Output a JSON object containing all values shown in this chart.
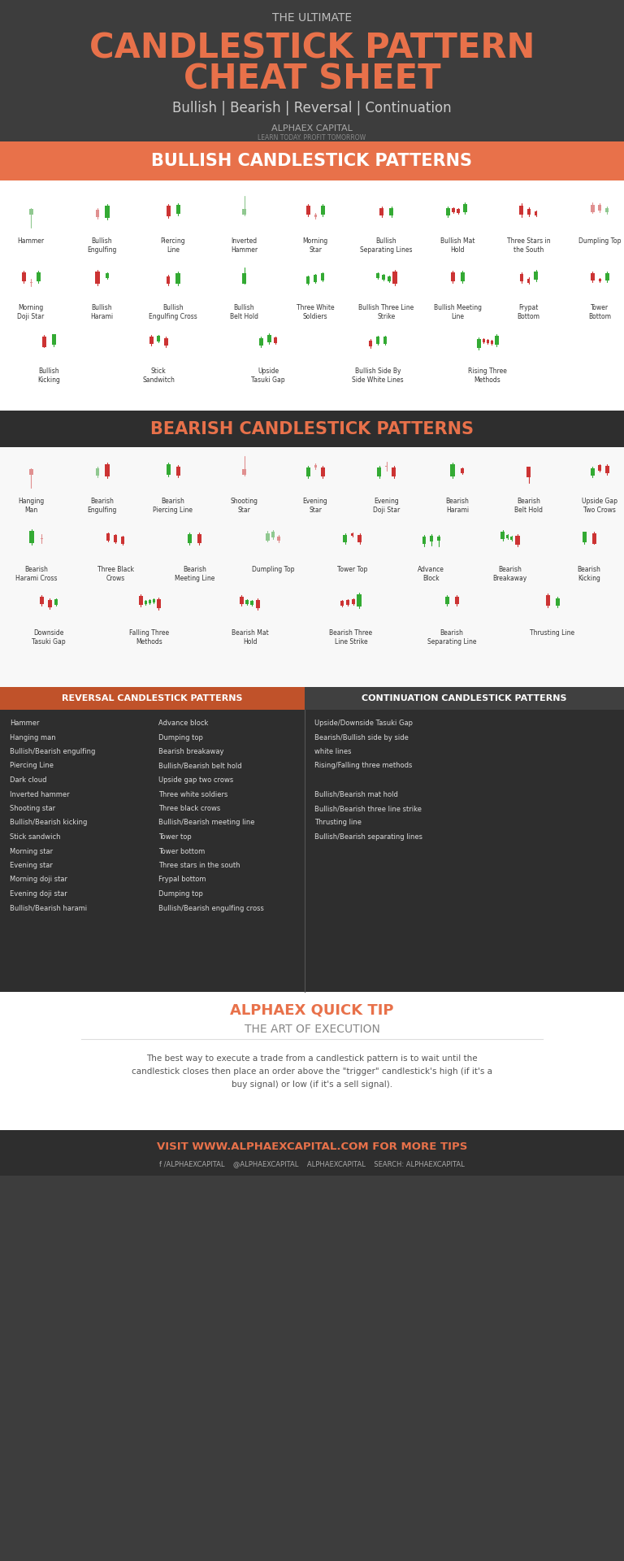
{
  "bg_dark": "#3d3d3d",
  "bg_orange": "#e8714a",
  "bg_white": "#ffffff",
  "bg_section_dark": "#2e2e2e",
  "text_orange": "#e8714a",
  "text_white": "#ffffff",
  "text_dark": "#333333",
  "text_gray": "#555555",
  "title_line1": "THE ULTIMATE",
  "title_line2": "CANDLESTICK PATTERN",
  "title_line3": "CHEAT SHEET",
  "subtitle": "Bullish | Bearish | Reversal | Continuation",
  "logo_text": "ALPHAEX CAPITAL",
  "logo_sub": "LEARN TODAY. PROFIT TOMORROW",
  "bullish_header": "BULLISH CANDLESTICK PATTERNS",
  "bearish_header": "BEARISH CANDLESTICK PATTERNS",
  "reversal_header": "REVERSAL CANDLESTICK PATTERNS",
  "continuation_header": "CONTINUATION CANDLESTICK PATTERNS",
  "tip_header": "ALPHAEX QUICK TIP",
  "tip_subheader": "THE ART OF EXECUTION",
  "tip_text": "The best way to execute a trade from a candlestick pattern is to wait until the\ncandlestick closes then place an order above the \"trigger\" candlestick's high (if it's a\nbuy signal) or low (if it's a sell signal).",
  "footer_text": "VISIT WWW.ALPHAEXCAPITAL.COM FOR MORE TIPS",
  "footer_social": "f /ALPHAEXCAPITAL    @ALPHAEXCAPITAL    ALPHAEXCAPITAL    SEARCH: ALPHAEXCAPITAL",
  "bullish_patterns_row1": [
    "Hammer",
    "Bullish\nEngulfing",
    "Piercing\nLine",
    "Inverted\nHammer",
    "Morning\nStar",
    "Bullish\nSeparating Lines",
    "Bullish Mat\nHold",
    "Three Stars in\nthe South",
    "Dumpling Top"
  ],
  "bullish_patterns_row2": [
    "Morning\nDoji Star",
    "Bullish\nHarami",
    "Bullish\nEngulfing Cross",
    "Bullish\nBelt Hold",
    "Three White\nSoldiers",
    "Bullish Three Line\nStrike",
    "Bullish Meeting\nLine",
    "Frypat\nBottom",
    "Tower\nBottom"
  ],
  "bullish_patterns_row3": [
    "Bullish\nKicking",
    "Stick\nSandwitch",
    "Upside\nTasuki Gap",
    "Bullish Side By\nSide White Lines",
    "Rising Three\nMethods"
  ],
  "bearish_patterns_row1": [
    "Hanging\nMan",
    "Bearish\nEngulfing",
    "Bearish\nPiercing Line",
    "Shooting\nStar",
    "Evening\nStar",
    "Evening\nDoji Star",
    "Bearish\nHarami",
    "Bearish\nBelt Hold",
    "Upside Gap\nTwo Crows"
  ],
  "bearish_patterns_row2": [
    "Bearish\nHarami Cross",
    "Three Black\nCrows",
    "Bearish\nMeeting Line",
    "Dumpling Top",
    "Tower Top",
    "Advance\nBlock",
    "Bearish\nBreakaway",
    "Bearish\nKicking"
  ],
  "bearish_patterns_row3": [
    "Downside\nTasuki Gap",
    "Falling Three\nMethods",
    "Bearish Mat\nHold",
    "Bearish Three\nLine Strike",
    "Bearish\nSeparating Line",
    "Thrusting Line"
  ],
  "reversal_list_col1": [
    "Hammer",
    "Hanging man",
    "Bullish/Bearish engulfing",
    "Piercing Line",
    "Dark cloud",
    "Inverted hammer",
    "Shooting star",
    "Bullish/Bearish kicking",
    "Stick sandwich",
    "Morning star",
    "Evening star",
    "Morning doji star",
    "Evening doji star",
    "Bullish/Bearish harami"
  ],
  "reversal_list_col2": [
    "Advance block",
    "Dumping top",
    "Bearish breakaway",
    "Bullish/Bearish belt hold",
    "Upside gap two crows",
    "Three white soldiers",
    "Three black crows",
    "Bullish/Bearish meeting line",
    "Tower top",
    "Tower bottom",
    "Three stars in the south",
    "Frypal bottom",
    "Dumping top",
    "Bullish/Bearish engulfing cross"
  ],
  "continuation_list": [
    "Upside/Downside Tasuki Gap",
    "Bearish/Bullish side by side",
    "white lines",
    "Rising/Falling three methods",
    "",
    "Bullish/Bearish mat hold",
    "Bullish/Bearish three line strike",
    "Thrusting line",
    "Bullish/Bearish separating lines"
  ]
}
